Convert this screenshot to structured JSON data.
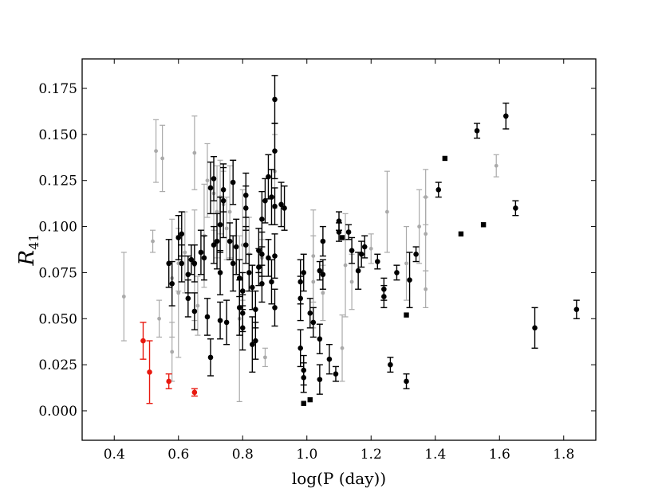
{
  "chart_data": {
    "type": "scatter",
    "title": "",
    "xlabel": "log(P (day))",
    "ylabel": {
      "main": "R",
      "sub": "41"
    },
    "xlim": [
      0.3,
      1.9
    ],
    "ylim": [
      -0.016,
      0.191
    ],
    "xticks": [
      0.4,
      0.6,
      0.8,
      1.0,
      1.2,
      1.4,
      1.6,
      1.8
    ],
    "xtick_labels": [
      "0.4",
      "0.6",
      "0.8",
      "1.0",
      "1.2",
      "1.4",
      "1.6",
      "1.8"
    ],
    "yticks": [
      0.0,
      0.025,
      0.05,
      0.075,
      0.1,
      0.125,
      0.15,
      0.175
    ],
    "ytick_labels": [
      "0.000",
      "0.025",
      "0.050",
      "0.075",
      "0.100",
      "0.125",
      "0.150",
      "0.175"
    ],
    "grid": false,
    "legend": "none",
    "colors": {
      "black": "#000000",
      "gray": "#aaaaaa",
      "red": "#e8190f"
    },
    "series": [
      {
        "color": "#aaaaaa",
        "marker": "circle",
        "points": [
          [
            0.43,
            0.062,
            0.024
          ],
          [
            0.53,
            0.141,
            0.017
          ],
          [
            0.55,
            0.137,
            0.018
          ],
          [
            0.52,
            0.092,
            0.006
          ],
          [
            0.54,
            0.05,
            0.01
          ],
          [
            0.58,
            0.072,
            0.032
          ],
          [
            0.58,
            0.032,
            0.016
          ],
          [
            0.6,
            0.08,
            0.015
          ],
          [
            0.6,
            0.064,
            0.035
          ],
          [
            0.62,
            0.086,
            0.022
          ],
          [
            0.65,
            0.14,
            0.02
          ],
          [
            0.65,
            0.079,
            0.03
          ],
          [
            0.66,
            0.057,
            0.016
          ],
          [
            0.68,
            0.095,
            0.028
          ],
          [
            0.69,
            0.125,
            0.02
          ],
          [
            0.71,
            0.118,
            0.02
          ],
          [
            0.72,
            0.108,
            0.025
          ],
          [
            0.73,
            0.116,
            0.02
          ],
          [
            0.74,
            0.112,
            0.018
          ],
          [
            0.75,
            0.099,
            0.017
          ],
          [
            0.76,
            0.108,
            0.025
          ],
          [
            0.79,
            0.05,
            0.045
          ],
          [
            0.8,
            0.09,
            0.03
          ],
          [
            0.82,
            0.085,
            0.02
          ],
          [
            0.86,
            0.083,
            0.01
          ],
          [
            0.87,
            0.029,
            0.005
          ],
          [
            0.9,
            0.13,
            0.02
          ],
          [
            1.02,
            0.07,
            0.025
          ],
          [
            1.02,
            0.084,
            0.025
          ],
          [
            1.05,
            0.064,
            0.015
          ],
          [
            1.11,
            0.034,
            0.018
          ],
          [
            1.12,
            0.079,
            0.028
          ],
          [
            1.14,
            0.07,
            0.015
          ],
          [
            1.2,
            0.088,
            0.008
          ],
          [
            1.25,
            0.108,
            0.022
          ],
          [
            1.31,
            0.08,
            0.02
          ],
          [
            1.35,
            0.1,
            0.02
          ],
          [
            1.37,
            0.116,
            0.015
          ],
          [
            1.37,
            0.096,
            0.02
          ],
          [
            1.37,
            0.066,
            0.01
          ],
          [
            1.59,
            0.133,
            0.006
          ]
        ]
      },
      {
        "color": "#e8190f",
        "marker": "circle",
        "points": [
          [
            0.49,
            0.038,
            0.01
          ],
          [
            0.51,
            0.021,
            0.017
          ],
          [
            0.57,
            0.016,
            0.004
          ],
          [
            0.65,
            0.01,
            0.002
          ]
        ]
      },
      {
        "color": "#000000",
        "marker": "circle",
        "points": [
          [
            0.57,
            0.08,
            0.013
          ],
          [
            0.58,
            0.069,
            0.012
          ],
          [
            0.6,
            0.094,
            0.012
          ],
          [
            0.61,
            0.096,
            0.012
          ],
          [
            0.61,
            0.08,
            0.01
          ],
          [
            0.63,
            0.074,
            0.01
          ],
          [
            0.63,
            0.061,
            0.01
          ],
          [
            0.64,
            0.082,
            0.008
          ],
          [
            0.65,
            0.08,
            0.01
          ],
          [
            0.65,
            0.054,
            0.01
          ],
          [
            0.67,
            0.086,
            0.012
          ],
          [
            0.68,
            0.083,
            0.012
          ],
          [
            0.69,
            0.051,
            0.01
          ],
          [
            0.7,
            0.029,
            0.01
          ],
          [
            0.7,
            0.121,
            0.014
          ],
          [
            0.71,
            0.126,
            0.012
          ],
          [
            0.71,
            0.09,
            0.01
          ],
          [
            0.72,
            0.092,
            0.015
          ],
          [
            0.73,
            0.101,
            0.015
          ],
          [
            0.73,
            0.075,
            0.012
          ],
          [
            0.73,
            0.049,
            0.01
          ],
          [
            0.74,
            0.12,
            0.012
          ],
          [
            0.74,
            0.114,
            0.02
          ],
          [
            0.75,
            0.048,
            0.012
          ],
          [
            0.76,
            0.092,
            0.01
          ],
          [
            0.77,
            0.124,
            0.012
          ],
          [
            0.77,
            0.08,
            0.015
          ],
          [
            0.78,
            0.089,
            0.015
          ],
          [
            0.79,
            0.072,
            0.01
          ],
          [
            0.79,
            0.056,
            0.015
          ],
          [
            0.8,
            0.065,
            0.01
          ],
          [
            0.8,
            0.053,
            0.01
          ],
          [
            0.8,
            0.045,
            0.012
          ],
          [
            0.81,
            0.09,
            0.01
          ],
          [
            0.81,
            0.11,
            0.012
          ],
          [
            0.81,
            0.117,
            0.012
          ],
          [
            0.82,
            0.075,
            0.01
          ],
          [
            0.83,
            0.067,
            0.012
          ],
          [
            0.83,
            0.036,
            0.015
          ],
          [
            0.84,
            0.038,
            0.01
          ],
          [
            0.84,
            0.055,
            0.01
          ],
          [
            0.85,
            0.078,
            0.01
          ],
          [
            0.85,
            0.087,
            0.012
          ],
          [
            0.86,
            0.069,
            0.01
          ],
          [
            0.86,
            0.085,
            0.012
          ],
          [
            0.86,
            0.104,
            0.015
          ],
          [
            0.87,
            0.114,
            0.012
          ],
          [
            0.88,
            0.083,
            0.01
          ],
          [
            0.88,
            0.127,
            0.012
          ],
          [
            0.89,
            0.07,
            0.012
          ],
          [
            0.89,
            0.116,
            0.015
          ],
          [
            0.9,
            0.141,
            0.015
          ],
          [
            0.9,
            0.169,
            0.013
          ],
          [
            0.9,
            0.111,
            0.01
          ],
          [
            0.9,
            0.084,
            0.012
          ],
          [
            0.9,
            0.056,
            0.01
          ],
          [
            0.92,
            0.112,
            0.012
          ],
          [
            0.93,
            0.11,
            0.012
          ],
          [
            0.98,
            0.07,
            0.012
          ],
          [
            0.98,
            0.061,
            0.012
          ],
          [
            0.98,
            0.034,
            0.01
          ],
          [
            0.99,
            0.022,
            0.008
          ],
          [
            0.99,
            0.018,
            0.008
          ],
          [
            0.99,
            0.075,
            0.01
          ],
          [
            1.01,
            0.053,
            0.008
          ],
          [
            1.02,
            0.048,
            0.008
          ],
          [
            1.04,
            0.076,
            0.005
          ],
          [
            1.04,
            0.039,
            0.008
          ],
          [
            1.04,
            0.017,
            0.008
          ],
          [
            1.05,
            0.092,
            0.008
          ],
          [
            1.05,
            0.074,
            0.008
          ],
          [
            1.07,
            0.028,
            0.008
          ],
          [
            1.09,
            0.02,
            0.004
          ],
          [
            1.1,
            0.097,
            0.005
          ],
          [
            1.1,
            0.103,
            0.005
          ],
          [
            1.13,
            0.097,
            0.004
          ],
          [
            1.14,
            0.087,
            0.007
          ],
          [
            1.16,
            0.076,
            0.01
          ],
          [
            1.17,
            0.085,
            0.007
          ],
          [
            1.18,
            0.089,
            0.006
          ],
          [
            1.22,
            0.081,
            0.004
          ],
          [
            1.24,
            0.066,
            0.006
          ],
          [
            1.24,
            0.062,
            0.006
          ],
          [
            1.26,
            0.025,
            0.004
          ],
          [
            1.28,
            0.075,
            0.004
          ],
          [
            1.31,
            0.016,
            0.004
          ],
          [
            1.32,
            0.071,
            0.015
          ],
          [
            1.34,
            0.085,
            0.004
          ],
          [
            1.41,
            0.12,
            0.004
          ],
          [
            1.53,
            0.152,
            0.004
          ],
          [
            1.62,
            0.16,
            0.007
          ],
          [
            1.65,
            0.11,
            0.004
          ],
          [
            1.71,
            0.045,
            0.011
          ],
          [
            1.84,
            0.055,
            0.005
          ]
        ]
      },
      {
        "color": "#000000",
        "marker": "square",
        "points": [
          [
            0.99,
            0.004
          ],
          [
            1.01,
            0.006
          ],
          [
            1.11,
            0.094
          ],
          [
            1.31,
            0.052
          ],
          [
            1.43,
            0.137
          ],
          [
            1.48,
            0.096
          ],
          [
            1.55,
            0.101
          ]
        ]
      }
    ]
  }
}
